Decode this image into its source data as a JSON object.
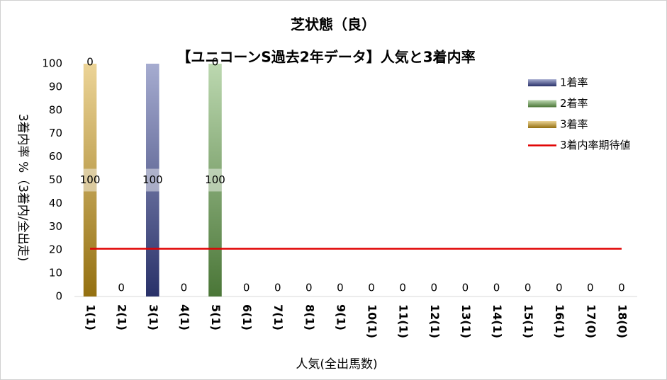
{
  "chart_data": {
    "type": "bar",
    "stacked": true,
    "title": "芝状態（良）",
    "subtitle": "【ユニコーンS過去2年データ】人気と3着内率",
    "x_label": "人気(全出馬数)",
    "y_label": "3着内率 %（3着内/全出走)",
    "categories": [
      "1(1)",
      "2(1)",
      "3(1)",
      "4(1)",
      "5(1)",
      "6(1)",
      "7(1)",
      "8(1)",
      "9(1)",
      "10(1)",
      "11(1)",
      "12(1)",
      "13(1)",
      "14(1)",
      "15(1)",
      "16(1)",
      "17(0)",
      "18(0)"
    ],
    "series": [
      {
        "name": "1着率",
        "color": "#3a4696",
        "values": [
          0,
          0,
          100,
          0,
          0,
          0,
          0,
          0,
          0,
          0,
          0,
          0,
          0,
          0,
          0,
          0,
          0,
          0
        ]
      },
      {
        "name": "2着率",
        "color": "#6aa84f",
        "values": [
          0,
          0,
          0,
          0,
          100,
          0,
          0,
          0,
          0,
          0,
          0,
          0,
          0,
          0,
          0,
          0,
          0,
          0
        ]
      },
      {
        "name": "3着率",
        "color": "#d4a017",
        "values": [
          100,
          0,
          0,
          0,
          0,
          0,
          0,
          0,
          0,
          0,
          0,
          0,
          0,
          0,
          0,
          0,
          0,
          0
        ]
      },
      {
        "name": "3着内率期待値",
        "type": "line",
        "color": "#e00000",
        "values": [
          20.5,
          20.5,
          20.5,
          20.5,
          20.5,
          20.5,
          20.5,
          20.5,
          20.5,
          20.5,
          20.5,
          20.5,
          20.5,
          20.5,
          20.5,
          20.5,
          20.5,
          20.5
        ]
      }
    ],
    "ylim": [
      0,
      100
    ],
    "yticks": [
      0,
      10,
      20,
      30,
      40,
      50,
      60,
      70,
      80,
      90,
      100
    ],
    "legend": "upper right"
  }
}
